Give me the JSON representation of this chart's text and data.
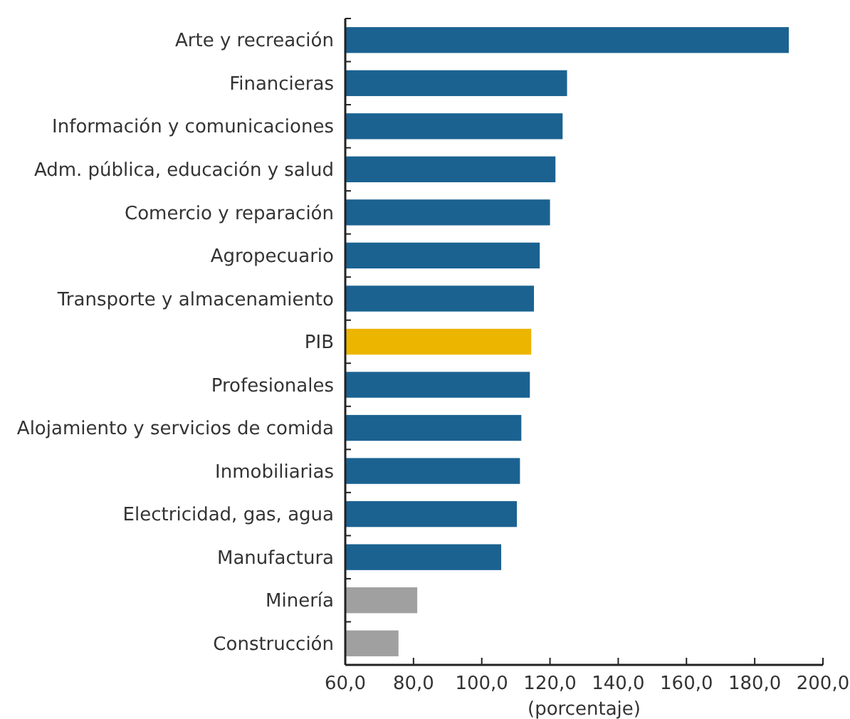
{
  "chart_data": {
    "type": "bar",
    "orientation": "horizontal",
    "xlabel": "(porcentaje)",
    "categories": [
      "Arte y recreación",
      "Financieras",
      "Información y comunicaciones",
      "Adm. pública, educación y salud",
      "Comercio y reparación",
      "Agropecuario",
      "Transporte y almacenamiento",
      "PIB",
      "Profesionales",
      "Alojamiento y servicios de comida",
      "Inmobiliarias",
      "Electricidad, gas, agua",
      "Manufactura",
      "Minería",
      "Construcción"
    ],
    "values": [
      190,
      125,
      123.7,
      121.6,
      120,
      117,
      115.3,
      114.5,
      114.1,
      111.6,
      111.2,
      110.3,
      105.7,
      81.1,
      75.6
    ],
    "colors": [
      "#1b6291",
      "#1b6291",
      "#1b6291",
      "#1b6291",
      "#1b6291",
      "#1b6291",
      "#1b6291",
      "#ecb500",
      "#1b6291",
      "#1b6291",
      "#1b6291",
      "#1b6291",
      "#1b6291",
      "#a0a0a0",
      "#a0a0a0"
    ],
    "xlim": [
      60,
      200
    ],
    "xticks": [
      {
        "value": 60,
        "label": "60,0"
      },
      {
        "value": 80,
        "label": "80,0"
      },
      {
        "value": 100,
        "label": "100,0"
      },
      {
        "value": 120,
        "label": "120,0"
      },
      {
        "value": 140,
        "label": "140,0"
      },
      {
        "value": 160,
        "label": "160,0"
      },
      {
        "value": 180,
        "label": "180,0"
      },
      {
        "value": 200,
        "label": "200,0"
      }
    ]
  }
}
